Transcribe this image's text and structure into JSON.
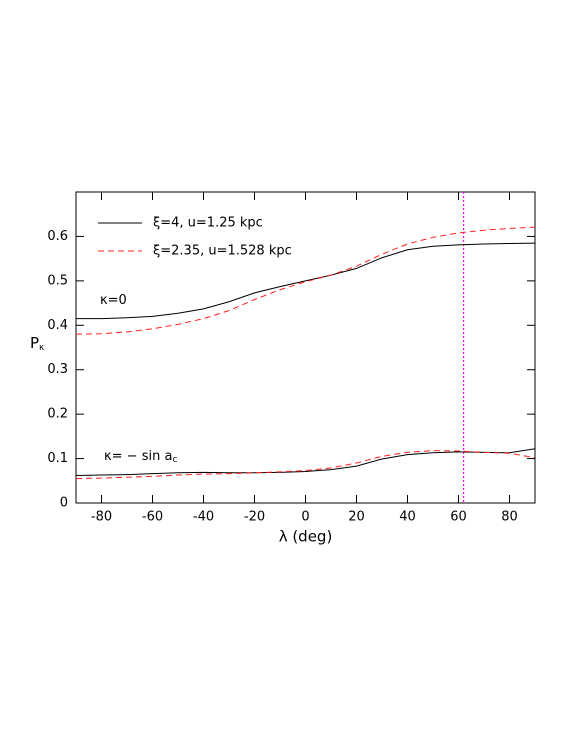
{
  "chart_data": {
    "type": "line",
    "x_label": "λ (deg)",
    "y_label": "P",
    "y_label_sub": "κ",
    "x": [
      -90,
      -80,
      -70,
      -60,
      -50,
      -40,
      -30,
      -20,
      -10,
      0,
      10,
      20,
      30,
      40,
      50,
      60,
      70,
      80,
      90
    ],
    "series": [
      {
        "name": "ξ=4, u=1.25 kpc",
        "color": "#000000",
        "dash": "none",
        "values": [
          0.415,
          0.415,
          0.417,
          0.42,
          0.427,
          0.437,
          0.453,
          0.473,
          0.487,
          0.5,
          0.513,
          0.528,
          0.552,
          0.57,
          0.578,
          0.581,
          0.583,
          0.584,
          0.585
        ]
      },
      {
        "name": "ξ=2.35, u=1.528 kpc",
        "color": "#ff2020",
        "dash": "6,4",
        "values": [
          0.38,
          0.381,
          0.385,
          0.392,
          0.402,
          0.415,
          0.433,
          0.458,
          0.48,
          0.498,
          0.513,
          0.533,
          0.56,
          0.583,
          0.598,
          0.608,
          0.614,
          0.618,
          0.621
        ]
      },
      {
        "color": "#000000",
        "dash": "none",
        "values": [
          0.062,
          0.063,
          0.064,
          0.066,
          0.068,
          0.069,
          0.068,
          0.068,
          0.069,
          0.071,
          0.075,
          0.083,
          0.099,
          0.109,
          0.113,
          0.115,
          0.114,
          0.113,
          0.122
        ]
      },
      {
        "color": "#ff2020",
        "dash": "6,4",
        "values": [
          0.055,
          0.056,
          0.058,
          0.06,
          0.063,
          0.065,
          0.066,
          0.068,
          0.07,
          0.073,
          0.079,
          0.09,
          0.105,
          0.114,
          0.118,
          0.117,
          0.114,
          0.112,
          0.102
        ]
      }
    ],
    "annotations": [
      {
        "text": "κ=0"
      },
      {
        "text": "κ= − sin a",
        "sub": "c"
      }
    ],
    "reference_line": {
      "x": 62,
      "color": "#ff00ff"
    },
    "xlim": [
      -90,
      90
    ],
    "xticks": [
      -80,
      -60,
      -40,
      -20,
      0,
      20,
      40,
      60,
      80
    ],
    "ylim": [
      0,
      0.7
    ],
    "yticks": [
      0,
      0.1,
      0.2,
      0.3,
      0.4,
      0.5,
      0.6
    ],
    "grid": false
  }
}
